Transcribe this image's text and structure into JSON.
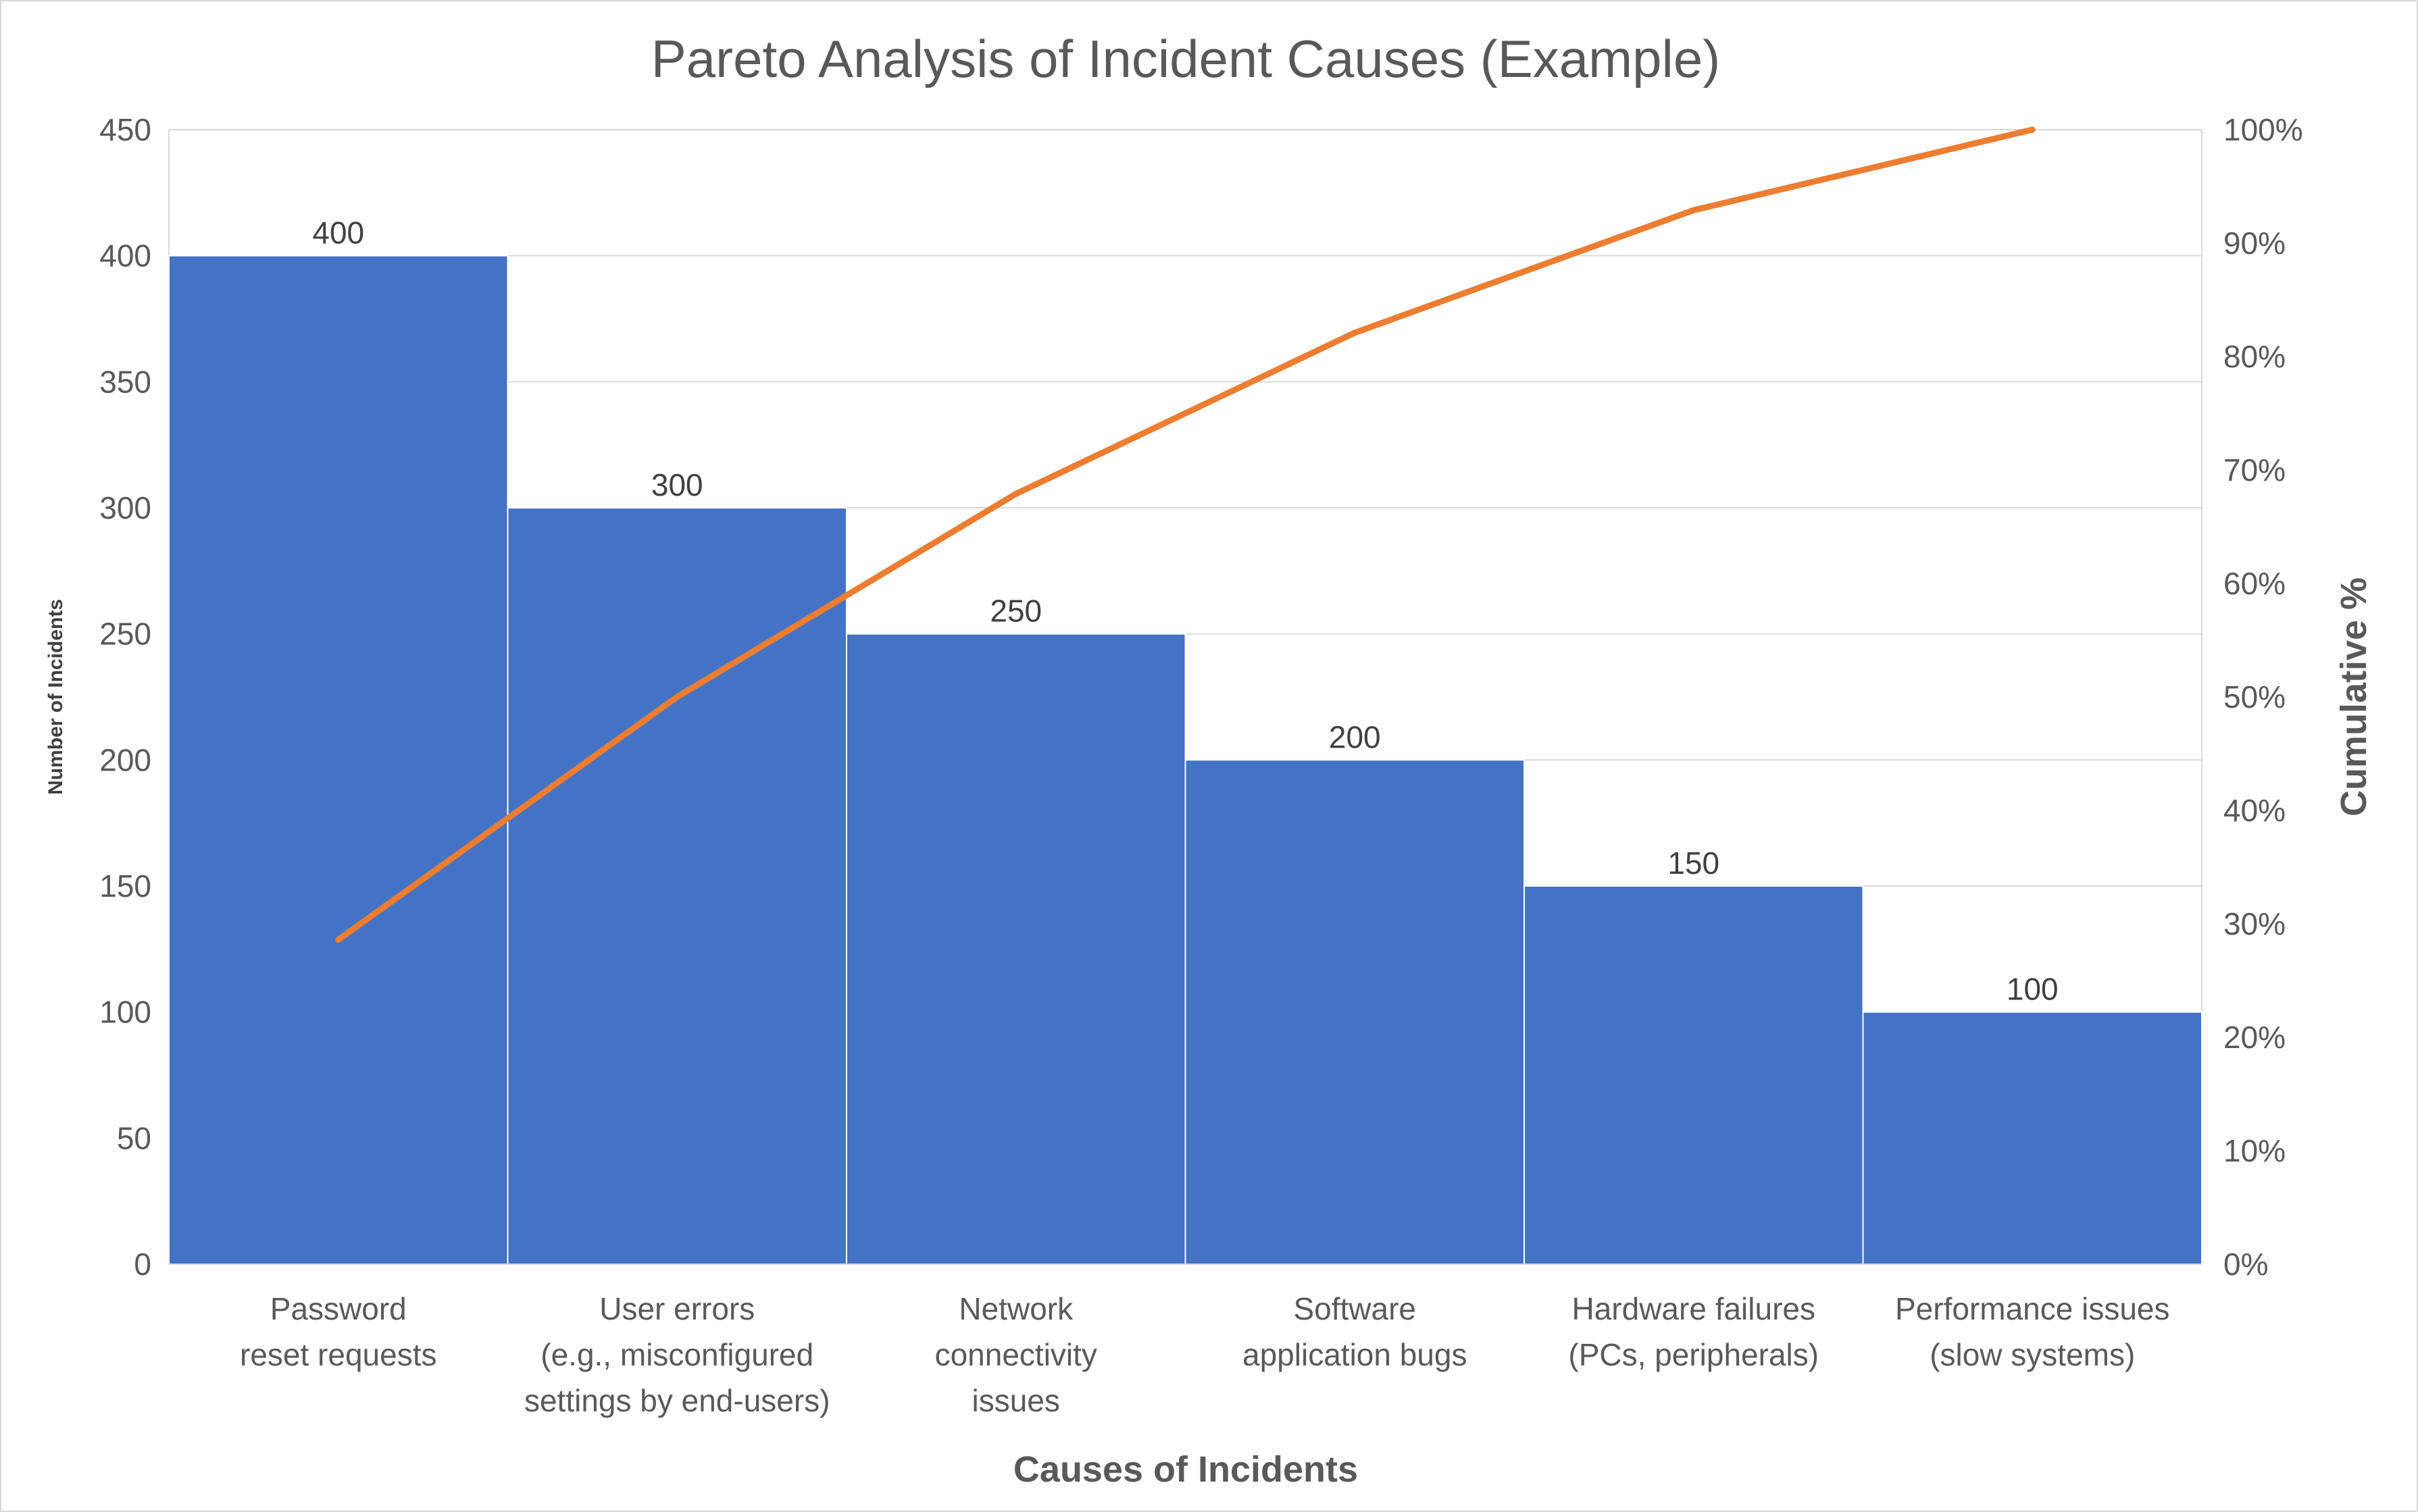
{
  "chart_data": {
    "type": "bar",
    "title": "Pareto Analysis of Incident Causes (Example)",
    "xlabel": "Causes of Incidents",
    "ylabel": "Number of Incidents",
    "y2label": "Cumulative %",
    "ylim": [
      0,
      450
    ],
    "y_ticks": [
      "0",
      "50",
      "100",
      "150",
      "200",
      "250",
      "300",
      "350",
      "400",
      "450"
    ],
    "y2lim": [
      0,
      100
    ],
    "y2_ticks": [
      "0%",
      "10%",
      "20%",
      "30%",
      "40%",
      "50%",
      "60%",
      "70%",
      "80%",
      "90%",
      "100%"
    ],
    "grid": true,
    "categories": [
      [
        "Password",
        "reset requests"
      ],
      [
        "User errors",
        "(e.g., misconfigured",
        "settings by end-users)"
      ],
      [
        "Network",
        "connectivity",
        "issues"
      ],
      [
        "Software",
        "application bugs"
      ],
      [
        "Hardware failures",
        "(PCs, peripherals)"
      ],
      [
        "Performance issues",
        "(slow systems)"
      ]
    ],
    "series": [
      {
        "type": "bar",
        "values": [
          400,
          300,
          250,
          200,
          150,
          100
        ],
        "data_labels": [
          "400",
          "300",
          "250",
          "200",
          "150",
          "100"
        ],
        "color": "#4472c4"
      },
      {
        "type": "line",
        "axis": "secondary",
        "values": [
          28.6,
          50.0,
          67.9,
          82.1,
          92.9,
          100.0
        ],
        "color": "#ed7d31"
      }
    ]
  }
}
